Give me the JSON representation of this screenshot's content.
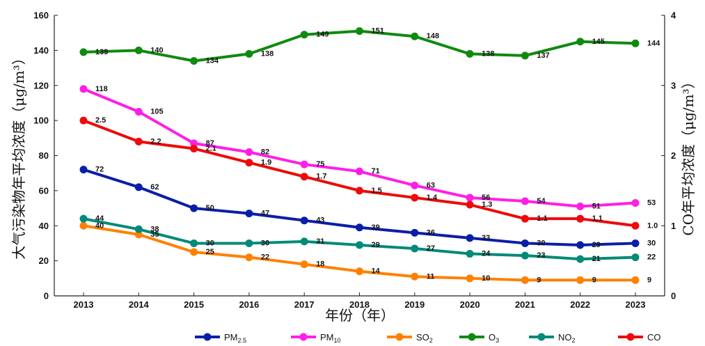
{
  "chart_data": {
    "type": "line",
    "categories": [
      "2013",
      "2014",
      "2015",
      "2016",
      "2017",
      "2018",
      "2019",
      "2020",
      "2021",
      "2022",
      "2023"
    ],
    "xlabel": "年份（年）",
    "ylabel": "大气污染物年平均浓度（μg/m³）",
    "y2label": "CO年平均浓度（μg/m³）",
    "ylim": [
      0,
      160
    ],
    "yticks": [
      0,
      20,
      40,
      60,
      80,
      100,
      120,
      140,
      160
    ],
    "y2lim": [
      0,
      4
    ],
    "y2ticks": [
      0,
      1,
      2,
      3,
      4
    ],
    "grid": false,
    "legend_position": "bottom",
    "series": [
      {
        "name": "PM",
        "sub": "2.5",
        "axis": "left",
        "color": "#0a1ea8",
        "values": [
          72,
          62,
          50,
          47,
          43,
          39,
          36,
          33,
          30,
          29,
          30
        ],
        "labels": [
          "72",
          "62",
          "50",
          "47",
          "43",
          "39",
          "36",
          "33",
          "30",
          "29",
          "30"
        ]
      },
      {
        "name": "PM",
        "sub": "10",
        "axis": "left",
        "color": "#ff1ee6",
        "values": [
          118,
          105,
          87,
          82,
          75,
          71,
          63,
          56,
          54,
          51,
          53
        ],
        "labels": [
          "118",
          "105",
          "87",
          "82",
          "75",
          "71",
          "63",
          "56",
          "54",
          "51",
          "53"
        ]
      },
      {
        "name": "SO",
        "sub": "2",
        "axis": "left",
        "color": "#ff8000",
        "values": [
          40,
          35,
          25,
          22,
          18,
          14,
          11,
          10,
          9,
          9,
          9
        ],
        "labels": [
          "40",
          "35",
          "25",
          "22",
          "18",
          "14",
          "11",
          "10",
          "9",
          "9",
          "9"
        ]
      },
      {
        "name": "O",
        "sub": "3",
        "axis": "left",
        "color": "#0f8a0f",
        "values": [
          139,
          140,
          134,
          138,
          149,
          151,
          148,
          138,
          137,
          145,
          144
        ],
        "labels": [
          "139",
          "140",
          "134",
          "138",
          "149",
          "151",
          "148",
          "138",
          "137",
          "145",
          "144"
        ]
      },
      {
        "name": "NO",
        "sub": "2",
        "axis": "left",
        "color": "#008a78",
        "values": [
          44,
          38,
          30,
          30,
          31,
          29,
          27,
          24,
          23,
          21,
          22
        ],
        "labels": [
          "44",
          "38",
          "30",
          "30",
          "31",
          "29",
          "27",
          "24",
          "23",
          "21",
          "22"
        ]
      },
      {
        "name": "CO",
        "sub": "",
        "axis": "right",
        "color": "#ee0a0a",
        "values": [
          2.5,
          2.2,
          2.1,
          1.9,
          1.7,
          1.5,
          1.4,
          1.3,
          1.1,
          1.1,
          1.0
        ],
        "labels": [
          "2.5",
          "2.2",
          "2.1",
          "1.9",
          "1.7",
          "1.5",
          "1.4",
          "1.3",
          "1.1",
          "1.1",
          "1.0"
        ]
      }
    ]
  }
}
